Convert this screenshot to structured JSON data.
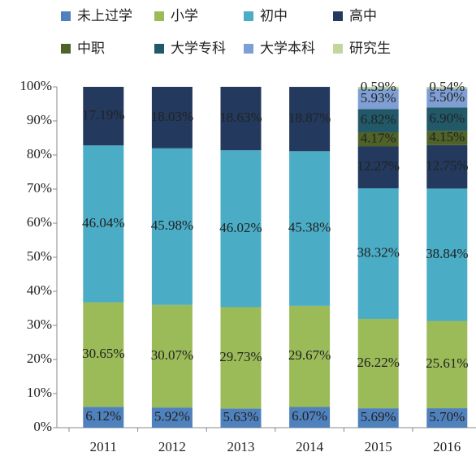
{
  "chart_data": {
    "type": "stacked-bar",
    "categories": [
      "2011",
      "2012",
      "2013",
      "2014",
      "2015",
      "2016"
    ],
    "ylim": [
      0,
      100
    ],
    "yticks": [
      {
        "value": 0,
        "label": "0%"
      },
      {
        "value": 10,
        "label": "10%"
      },
      {
        "value": 20,
        "label": "20%"
      },
      {
        "value": 30,
        "label": "30%"
      },
      {
        "value": 40,
        "label": "40%"
      },
      {
        "value": 50,
        "label": "50%"
      },
      {
        "value": 60,
        "label": "60%"
      },
      {
        "value": 70,
        "label": "70%"
      },
      {
        "value": 80,
        "label": "80%"
      },
      {
        "value": 90,
        "label": "90%"
      },
      {
        "value": 100,
        "label": "100%"
      }
    ],
    "series": [
      {
        "name": "未上过学",
        "color": "#4f81bd",
        "values": [
          6.12,
          5.92,
          5.63,
          6.07,
          5.69,
          5.7
        ],
        "value_labels": [
          "6.12%",
          "5.92%",
          "5.63%",
          "6.07%",
          "5.69%",
          "5.70%"
        ]
      },
      {
        "name": "小学",
        "color": "#9bbb59",
        "values": [
          30.65,
          30.07,
          29.73,
          29.67,
          26.22,
          25.61
        ],
        "value_labels": [
          "30.65%",
          "30.07%",
          "29.73%",
          "29.67%",
          "26.22%",
          "25.61%"
        ]
      },
      {
        "name": "初中",
        "color": "#4bacc6",
        "values": [
          46.04,
          45.98,
          46.02,
          45.38,
          38.32,
          38.84
        ],
        "value_labels": [
          "46.04%",
          "45.98%",
          "46.02%",
          "45.38%",
          "38.32%",
          "38.84%"
        ]
      },
      {
        "name": "高中",
        "color": "#23395d",
        "values": [
          17.19,
          18.03,
          18.63,
          18.87,
          12.27,
          12.75
        ],
        "value_labels": [
          "17.19%",
          "18.03%",
          "18.63%",
          "18.87%",
          "12.27%",
          "12.75%"
        ]
      },
      {
        "name": "中职",
        "color": "#4f6228",
        "values": [
          null,
          null,
          null,
          null,
          4.17,
          4.15
        ],
        "value_labels": [
          null,
          null,
          null,
          null,
          "4.17%",
          "4.15%"
        ]
      },
      {
        "name": "大学专科",
        "color": "#215968",
        "values": [
          null,
          null,
          null,
          null,
          6.82,
          6.9
        ],
        "value_labels": [
          null,
          null,
          null,
          null,
          "6.82%",
          "6.90%"
        ]
      },
      {
        "name": "大学本科",
        "color": "#7f9fd4",
        "values": [
          null,
          null,
          null,
          null,
          5.93,
          5.5
        ],
        "value_labels": [
          null,
          null,
          null,
          null,
          "5.93%",
          "5.50%"
        ]
      },
      {
        "name": "研究生",
        "color": "#c3d69b",
        "values": [
          null,
          null,
          null,
          null,
          0.59,
          0.54
        ],
        "value_labels": [
          null,
          null,
          null,
          null,
          "0.59%",
          "0.54%"
        ]
      }
    ]
  }
}
